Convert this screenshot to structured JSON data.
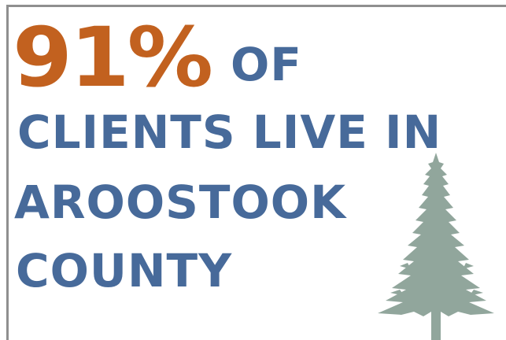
{
  "stat": {
    "percent": "91%",
    "suffix": "OF",
    "lines": [
      "CLIENTS LIVE IN",
      "AROOSTOOK",
      "COUNTY"
    ]
  },
  "colors": {
    "accent_orange": "#c2611f",
    "text_blue": "#476a9a",
    "tree_green": "#91a69c",
    "frame_gray": "#8f8f8f",
    "background": "#ffffff"
  },
  "icons": {
    "tree": "pine-tree-icon"
  }
}
